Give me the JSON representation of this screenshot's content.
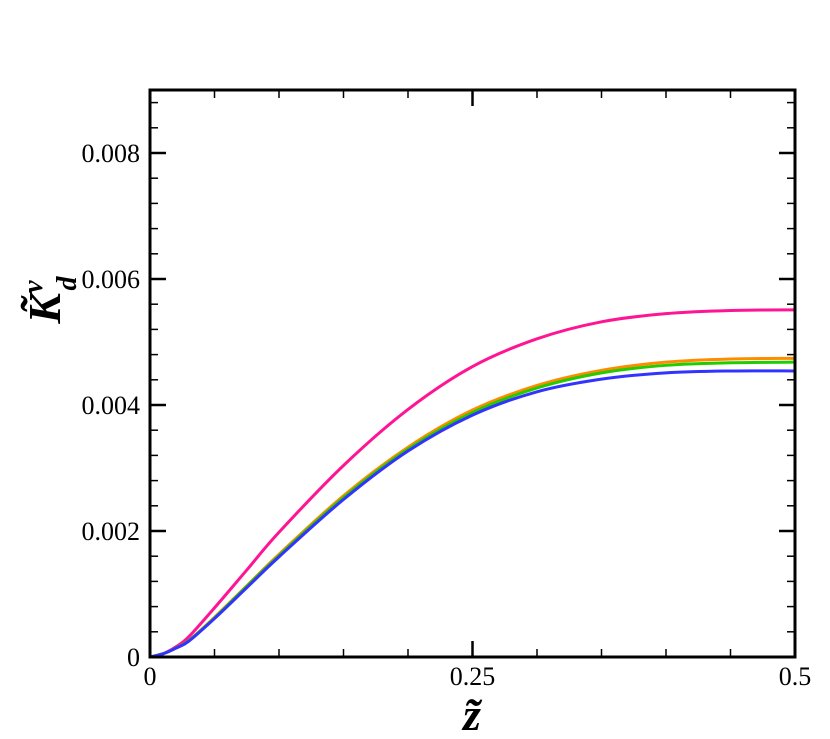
{
  "chart_data": {
    "type": "line",
    "title": "",
    "xlabel": "z̃",
    "ylabel": {
      "main": "K̃",
      "superscript": "v",
      "subscript": "d"
    },
    "xlim": [
      0,
      0.5
    ],
    "ylim": [
      0,
      0.009
    ],
    "x_ticks": [
      {
        "value": 0,
        "label": "0"
      },
      {
        "value": 0.25,
        "label": "0.25"
      },
      {
        "value": 0.5,
        "label": "0.5"
      }
    ],
    "y_ticks": [
      {
        "value": 0,
        "label": "0"
      },
      {
        "value": 0.002,
        "label": "0.002"
      },
      {
        "value": 0.004,
        "label": "0.004"
      },
      {
        "value": 0.006,
        "label": "0.006"
      },
      {
        "value": 0.008,
        "label": "0.008"
      }
    ],
    "x_minor_step": 0.05,
    "y_minor_step": 0.0004,
    "grid": false,
    "x": [
      0,
      0.01,
      0.02,
      0.03,
      0.05,
      0.075,
      0.1,
      0.15,
      0.2,
      0.25,
      0.3,
      0.35,
      0.4,
      0.45,
      0.5
    ],
    "series": [
      {
        "color": "#ff1493",
        "values": [
          0,
          5e-05,
          0.00016,
          0.00032,
          0.00078,
          0.00138,
          0.00198,
          0.00304,
          0.00393,
          0.00461,
          0.00505,
          0.00532,
          0.00545,
          0.0055,
          0.00551
        ]
      },
      {
        "color": "#ff8c00",
        "values": [
          0,
          5e-05,
          0.00014,
          0.00026,
          0.00063,
          0.00113,
          0.00163,
          0.00256,
          0.00333,
          0.00392,
          0.00431,
          0.00455,
          0.00468,
          0.00473,
          0.00474
        ]
      },
      {
        "color": "#22cc00",
        "values": [
          0,
          5e-05,
          0.00014,
          0.00026,
          0.00062,
          0.00112,
          0.00161,
          0.00253,
          0.0033,
          0.00388,
          0.00427,
          0.00451,
          0.00463,
          0.00467,
          0.00468
        ]
      },
      {
        "color": "#3333ff",
        "values": [
          0,
          5e-05,
          0.00014,
          0.00025,
          0.00061,
          0.0011,
          0.00159,
          0.0025,
          0.00327,
          0.00384,
          0.00421,
          0.00441,
          0.00451,
          0.00454,
          0.00454
        ]
      }
    ]
  }
}
